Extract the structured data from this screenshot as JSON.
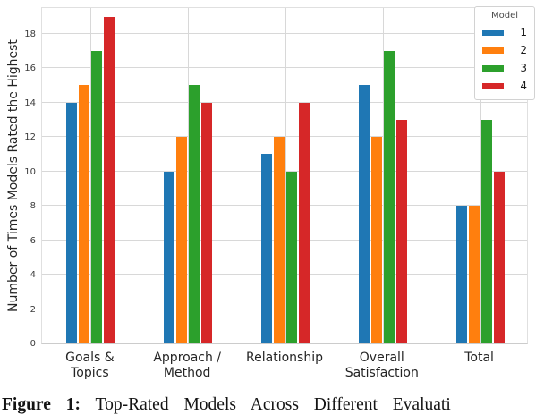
{
  "chart_data": {
    "type": "bar",
    "title": "",
    "categories": [
      "Goals &\nTopics",
      "Approach /\nMethod",
      "Relationship",
      "Overall\nSatisfaction",
      "Total"
    ],
    "series": [
      {
        "name": "1",
        "color": "#1f77b4",
        "values": [
          14,
          10,
          11,
          15,
          8
        ]
      },
      {
        "name": "2",
        "color": "#ff7f0e",
        "values": [
          15,
          12,
          12,
          12,
          8
        ]
      },
      {
        "name": "3",
        "color": "#2ca02c",
        "values": [
          17,
          15,
          10,
          17,
          13
        ]
      },
      {
        "name": "4",
        "color": "#d62728",
        "values": [
          19,
          14,
          14,
          13,
          10
        ]
      }
    ],
    "xlabel": "",
    "ylabel": "Number of Times Models Rated the Highest",
    "yticks": [
      0,
      2,
      4,
      6,
      8,
      10,
      12,
      14,
      16,
      18
    ],
    "ylim": [
      0,
      19.6
    ],
    "grid": true,
    "legend_title": "Model",
    "legend_position": "upper right"
  },
  "caption": {
    "prefix": "Figure 1:",
    "text": "Top-Rated Models Across Different Evaluati"
  }
}
